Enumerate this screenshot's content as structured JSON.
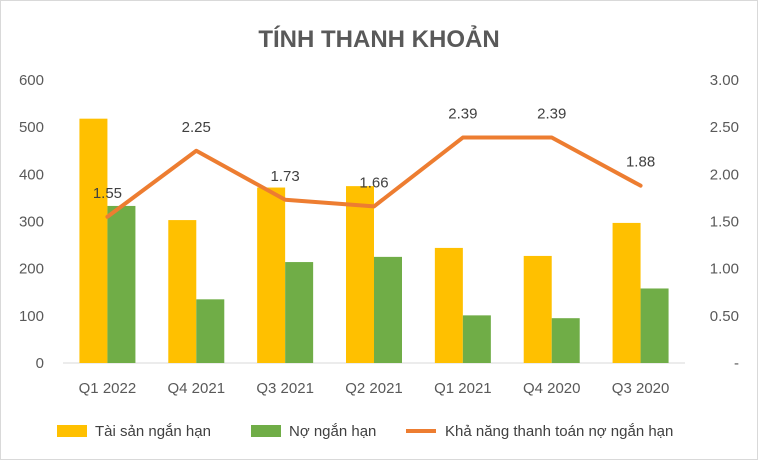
{
  "chart_data": {
    "type": "bar",
    "title": "TÍNH THANH KHOẢN",
    "categories": [
      "Q1 2022",
      "Q4 2021",
      "Q3 2021",
      "Q2 2021",
      "Q1 2021",
      "Q4 2020",
      "Q3 2020"
    ],
    "series": [
      {
        "name": "Tài sản ngắn hạn",
        "type": "bar",
        "axis": "left",
        "color": "#FFC000",
        "values": [
          518,
          303,
          372,
          375,
          244,
          227,
          297
        ]
      },
      {
        "name": "Nợ ngắn hạn",
        "type": "bar",
        "axis": "left",
        "color": "#70AD47",
        "values": [
          333,
          135,
          214,
          225,
          101,
          95,
          158
        ]
      },
      {
        "name": "Khả năng thanh toán nợ ngắn hạn",
        "type": "line",
        "axis": "right",
        "color": "#ED7D31",
        "values": [
          1.55,
          2.25,
          1.73,
          1.66,
          2.39,
          2.39,
          1.88
        ],
        "labels": [
          "1.55",
          "2.25",
          "1.73",
          "1.66",
          "2.39",
          "2.39",
          "1.88"
        ]
      }
    ],
    "y_left": {
      "ylim": [
        0,
        600
      ],
      "ticks": [
        "0",
        "100",
        "200",
        "300",
        "400",
        "500",
        "600"
      ]
    },
    "y_right": {
      "ylim": [
        0,
        3
      ],
      "ticks": [
        "-",
        "0.50",
        "1.00",
        "1.50",
        "2.00",
        "2.50",
        "3.00"
      ]
    },
    "grid": false,
    "legend": "bottom"
  }
}
